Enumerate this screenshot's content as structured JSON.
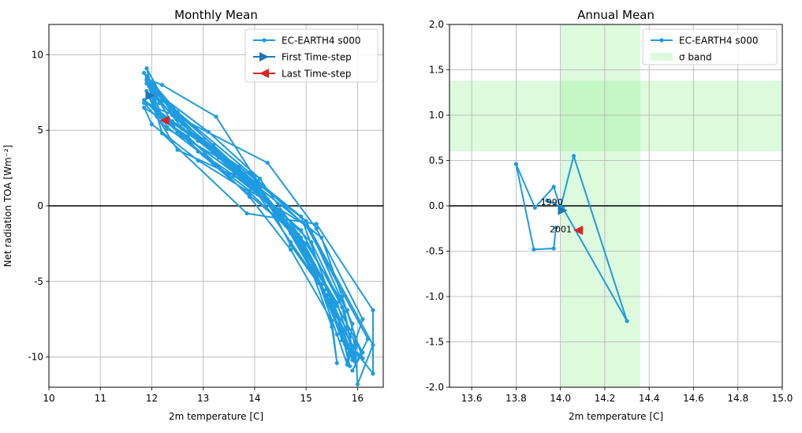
{
  "chart_data": [
    {
      "type": "line",
      "title": "Monthly Mean",
      "xlabel": "2m temperature [C]",
      "ylabel": "Net radiation TOA [Wm⁻²]",
      "xlim": [
        10,
        16.5
      ],
      "ylim": [
        -12,
        12
      ],
      "xticks": [
        10,
        11,
        12,
        13,
        14,
        15,
        16
      ],
      "yticks": [
        -10,
        -5,
        0,
        5,
        10
      ],
      "grid": true,
      "zero_line": true,
      "legend_placement": "top-right",
      "legend": [
        "EC-EARTH4 s000",
        "First Time-step",
        "Last Time-step"
      ],
      "colors": {
        "series": "#1f9be0",
        "first": "#1f77b4",
        "last": "#d62728"
      },
      "first_timestep": [
        11.97,
        7.3
      ],
      "last_timestep": [
        12.25,
        5.65
      ],
      "series": [
        {
          "name": "EC-EARTH4 s000",
          "points": [
            [
              11.9,
              7.6
            ],
            [
              12.1,
              6.2
            ],
            [
              12.9,
              4.3
            ],
            [
              13.9,
              1.6
            ],
            [
              14.7,
              -1.8
            ],
            [
              15.3,
              -5.2
            ],
            [
              15.7,
              -8.9
            ],
            [
              15.9,
              -9.6
            ],
            [
              15.6,
              -6.4
            ],
            [
              14.8,
              -1.9
            ],
            [
              13.8,
              1.8
            ],
            [
              12.6,
              5.4
            ],
            [
              11.85,
              8.8
            ],
            [
              12.2,
              7.0
            ],
            [
              13.2,
              4.0
            ],
            [
              14.1,
              1.2
            ],
            [
              14.9,
              -2.3
            ],
            [
              15.5,
              -6.0
            ],
            [
              15.9,
              -10.2
            ],
            [
              16.0,
              -9.2
            ],
            [
              15.8,
              -6.9
            ],
            [
              15.0,
              -2.5
            ],
            [
              14.0,
              1.0
            ],
            [
              12.4,
              6.0
            ],
            [
              11.9,
              9.1
            ],
            [
              12.0,
              7.8
            ],
            [
              12.8,
              4.7
            ],
            [
              13.8,
              2.1
            ],
            [
              14.6,
              -1.0
            ],
            [
              15.2,
              -4.6
            ],
            [
              15.6,
              -8.5
            ],
            [
              15.8,
              -10.5
            ],
            [
              16.1,
              -7.5
            ],
            [
              15.2,
              -1.5
            ],
            [
              14.25,
              2.85
            ],
            [
              12.5,
              5.9
            ],
            [
              11.85,
              6.8
            ],
            [
              12.3,
              5.1
            ],
            [
              13.3,
              3.2
            ],
            [
              14.2,
              0.4
            ],
            [
              15.0,
              -3.0
            ],
            [
              15.5,
              -6.8
            ],
            [
              16.0,
              -9.8
            ],
            [
              16.3,
              -11.1
            ],
            [
              16.3,
              -6.9
            ],
            [
              15.2,
              -1.2
            ],
            [
              13.85,
              -0.5
            ],
            [
              12.2,
              4.8
            ],
            [
              11.9,
              8.4
            ],
            [
              12.2,
              8.0
            ],
            [
              13.25,
              5.9
            ],
            [
              14.0,
              1.9
            ],
            [
              14.7,
              -2.6
            ],
            [
              15.4,
              -5.9
            ],
            [
              15.9,
              -9.3
            ],
            [
              15.8,
              -10.2
            ],
            [
              15.9,
              -7.8
            ],
            [
              15.0,
              -1.0
            ],
            [
              13.7,
              2.4
            ],
            [
              12.3,
              6.8
            ],
            [
              11.95,
              7.2
            ],
            [
              12.1,
              5.9
            ],
            [
              12.5,
              3.7
            ],
            [
              13.6,
              2.0
            ],
            [
              14.5,
              -0.4
            ],
            [
              15.1,
              -4.2
            ],
            [
              15.5,
              -8.0
            ],
            [
              15.6,
              -10.4
            ],
            [
              15.5,
              -7.6
            ],
            [
              14.7,
              -2.9
            ],
            [
              13.9,
              0.6
            ],
            [
              12.7,
              4.6
            ],
            [
              11.85,
              6.5
            ],
            [
              12.0,
              5.4
            ],
            [
              12.9,
              3.0
            ],
            [
              13.9,
              0.9
            ],
            [
              14.8,
              -2.0
            ],
            [
              15.4,
              -5.5
            ],
            [
              15.85,
              -9.6
            ],
            [
              16.1,
              -10.1
            ],
            [
              15.7,
              -6.0
            ],
            [
              15.3,
              -2.1
            ],
            [
              14.05,
              1.3
            ],
            [
              12.6,
              5.1
            ],
            [
              11.9,
              8.1
            ],
            [
              12.15,
              6.8
            ],
            [
              13.0,
              4.4
            ],
            [
              14.0,
              1.6
            ],
            [
              14.9,
              -2.7
            ],
            [
              15.45,
              -6.3
            ],
            [
              15.95,
              -9.0
            ],
            [
              16.0,
              -11.8
            ],
            [
              16.3,
              -9.2
            ],
            [
              15.1,
              -1.7
            ],
            [
              13.9,
              2.2
            ],
            [
              12.5,
              6.2
            ],
            [
              11.9,
              8.6
            ],
            [
              12.2,
              7.2
            ],
            [
              13.1,
              4.9
            ],
            [
              14.1,
              1.8
            ],
            [
              14.9,
              -2.1
            ],
            [
              15.6,
              -6.6
            ],
            [
              16.1,
              -9.7
            ],
            [
              15.9,
              -10.9
            ],
            [
              16.2,
              -8.8
            ],
            [
              15.0,
              -1.3
            ],
            [
              13.9,
              1.0
            ],
            [
              12.3,
              5.2
            ],
            [
              11.95,
              7.9
            ],
            [
              12.1,
              6.4
            ],
            [
              12.9,
              3.6
            ],
            [
              13.9,
              0.7
            ],
            [
              14.6,
              -1.3
            ],
            [
              15.25,
              -5.1
            ],
            [
              15.75,
              -9.1
            ],
            [
              15.85,
              -10.6
            ],
            [
              15.6,
              -7.2
            ],
            [
              14.9,
              -0.7
            ],
            [
              13.7,
              2.6
            ],
            [
              12.4,
              5.6
            ],
            [
              11.85,
              7.0
            ],
            [
              12.2,
              5.8
            ],
            [
              13.0,
              3.4
            ],
            [
              14.0,
              1.1
            ],
            [
              14.7,
              -2.4
            ],
            [
              15.35,
              -5.6
            ],
            [
              15.8,
              -9.4
            ],
            [
              15.95,
              -10.3
            ],
            [
              15.75,
              -7.0
            ],
            [
              15.1,
              -2.4
            ],
            [
              13.95,
              1.4
            ],
            [
              12.5,
              4.9
            ],
            [
              11.9,
              8.3
            ],
            [
              12.1,
              7.4
            ],
            [
              13.05,
              4.1
            ],
            [
              14.0,
              1.4
            ],
            [
              14.85,
              -1.9
            ],
            [
              15.45,
              -5.8
            ],
            [
              15.9,
              -9.9
            ],
            [
              15.95,
              -10.0
            ],
            [
              15.7,
              -6.7
            ],
            [
              14.9,
              -1.6
            ],
            [
              13.6,
              2.2
            ],
            [
              12.25,
              5.6
            ]
          ]
        }
      ]
    },
    {
      "type": "line",
      "title": "Annual Mean",
      "xlabel": "2m temperature [C]",
      "ylabel": "",
      "xlim": [
        13.5,
        15.0
      ],
      "ylim": [
        -2.0,
        2.0
      ],
      "xticks": [
        13.6,
        13.8,
        14.0,
        14.2,
        14.4,
        14.6,
        14.8,
        15.0
      ],
      "yticks": [
        -2.0,
        -1.5,
        -1.0,
        -0.5,
        0.0,
        0.5,
        1.0,
        1.5,
        2.0
      ],
      "grid": true,
      "zero_line": true,
      "legend_placement": "top-right",
      "legend": [
        "EC-EARTH4 s000",
        "σ band"
      ],
      "colors": {
        "series": "#1f9be0",
        "first": "#1f77b4",
        "last": "#d62728",
        "band": "#90ee90"
      },
      "sigma_band": {
        "x": [
          14.0,
          14.36
        ],
        "y": [
          0.6,
          1.38
        ]
      },
      "first_timestep": [
        14.01,
        -0.05
      ],
      "last_timestep": [
        14.08,
        -0.27
      ],
      "annotations": [
        {
          "text": "1990",
          "at": [
            13.94,
            0.06
          ]
        },
        {
          "text": "2001",
          "at": [
            13.98,
            -0.24
          ]
        }
      ],
      "series": [
        {
          "name": "EC-EARTH4 s000",
          "points": [
            [
              13.94,
              0.06
            ],
            [
              14.01,
              -0.02
            ],
            [
              14.3,
              -1.27
            ],
            [
              14.06,
              0.55
            ],
            [
              14.0,
              -0.02
            ],
            [
              13.97,
              0.21
            ],
            [
              13.885,
              -0.02
            ],
            [
              13.8,
              0.46
            ],
            [
              13.88,
              -0.48
            ],
            [
              13.97,
              -0.47
            ],
            [
              13.98,
              -0.24
            ]
          ]
        }
      ]
    }
  ]
}
